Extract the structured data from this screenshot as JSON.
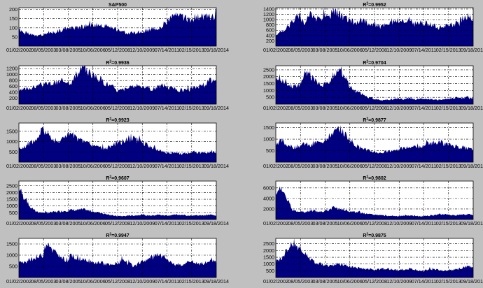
{
  "chart_data": [
    {
      "type": "area",
      "title": "S&P500",
      "r2": "",
      "yticks": [
        50,
        100,
        150,
        200
      ],
      "ylim": [
        0,
        210
      ],
      "xticks": [
        "01/02/2002",
        "08/05/2003",
        "03/08/2005",
        "10/06/2006",
        "05/12/2008",
        "12/10/2009",
        "07/14/2011",
        "02/15/2013",
        "09/18/2014"
      ],
      "color": "#000080",
      "series": {
        "x_start": "01/02/2002",
        "x_end": "12/31/2014",
        "y": [
          88,
          72,
          62,
          55,
          60,
          66,
          75,
          85,
          95,
          98,
          100,
          108,
          115,
          118,
          112,
          110,
          104,
          92,
          80,
          70,
          72,
          78,
          85,
          92,
          98,
          118,
          150,
          165,
          158,
          150,
          145,
          155,
          165,
          160,
          155
        ]
      }
    },
    {
      "type": "area",
      "title": "",
      "r2": "=0.9952",
      "yticks": [
        200,
        400,
        600,
        800,
        1000,
        1200,
        1400
      ],
      "ylim": [
        0,
        1450
      ],
      "xticks": [
        "01/02/2002",
        "08/05/2003",
        "03/08/2005",
        "10/06/2006",
        "05/12/2008",
        "12/10/2009",
        "07/14/2011",
        "02/15/2013",
        "09/18/2014"
      ],
      "color": "#000080",
      "series": {
        "x_start": "01/02/2002",
        "x_end": "12/31/2014",
        "y": [
          450,
          520,
          700,
          1000,
          1150,
          900,
          1200,
          1050,
          1100,
          1100,
          1300,
          1200,
          1050,
          950,
          900,
          1000,
          850,
          800,
          750,
          800,
          900,
          950,
          900,
          1000,
          800,
          900,
          850,
          800,
          700,
          750,
          800,
          850,
          1000,
          1150,
          1100
        ]
      }
    },
    {
      "type": "area",
      "title": "",
      "r2": "=0.9936",
      "yticks": [
        200,
        400,
        600,
        800,
        1000,
        1200
      ],
      "ylim": [
        0,
        1300
      ],
      "xticks": [
        "01/02/2002",
        "08/05/2003",
        "03/08/2005",
        "10/06/2006",
        "05/12/2008",
        "12/10/2009",
        "07/14/2011",
        "02/15/2013",
        "09/18/2014"
      ],
      "color": "#000080",
      "series": {
        "x_start": "01/02/2002",
        "x_end": "12/31/2014",
        "y": [
          450,
          500,
          550,
          600,
          650,
          700,
          700,
          750,
          800,
          750,
          1000,
          1250,
          1100,
          950,
          850,
          700,
          600,
          450,
          500,
          550,
          600,
          650,
          550,
          500,
          600,
          650,
          550,
          500,
          450,
          500,
          550,
          600,
          650,
          800,
          750
        ]
      }
    },
    {
      "type": "area",
      "title": "",
      "r2": "=0.9704",
      "yticks": [
        500,
        1000,
        1500,
        2000,
        2500
      ],
      "ylim": [
        0,
        2800
      ],
      "xticks": [
        "01/02/2002",
        "08/05/2003",
        "03/08/2005",
        "10/06/2006",
        "05/12/2008",
        "12/10/2009",
        "07/14/2011",
        "02/15/2013",
        "09/18/2014"
      ],
      "color": "#000080",
      "series": {
        "x_start": "01/02/2002",
        "x_end": "12/31/2014",
        "y": [
          1900,
          1750,
          1500,
          1300,
          1400,
          2200,
          2000,
          1650,
          1400,
          1550,
          2100,
          2600,
          1800,
          1200,
          900,
          700,
          500,
          350,
          300,
          300,
          350,
          400,
          350,
          450,
          350,
          400,
          350,
          350,
          300,
          350,
          400,
          450,
          400,
          500,
          450
        ]
      }
    },
    {
      "type": "area",
      "title": "",
      "r2": "=0.9923",
      "yticks": [
        500,
        1000,
        1500
      ],
      "ylim": [
        0,
        1900
      ],
      "xticks": [
        "01/02/2002",
        "08/05/2003",
        "03/08/2005",
        "10/06/2006",
        "05/12/2008",
        "12/10/2009",
        "07/14/2011",
        "02/15/2013",
        "09/18/2014"
      ],
      "color": "#000080",
      "series": {
        "x_start": "01/02/2002",
        "x_end": "12/31/2014",
        "y": [
          650,
          750,
          900,
          1100,
          1600,
          1300,
          1100,
          1000,
          1300,
          1350,
          1150,
          1000,
          900,
          800,
          700,
          650,
          800,
          950,
          1000,
          1150,
          1200,
          1000,
          850,
          700,
          600,
          500,
          450,
          450,
          400,
          450,
          500,
          450,
          450,
          500,
          450
        ]
      }
    },
    {
      "type": "area",
      "title": "",
      "r2": "=0.9877",
      "yticks": [
        500,
        1000,
        1500
      ],
      "ylim": [
        0,
        1700
      ],
      "xticks": [
        "01/02/2002",
        "08/05/2003",
        "03/08/2005",
        "10/06/2006",
        "05/12/2008",
        "12/10/2009",
        "07/14/2011",
        "02/15/2013",
        "09/18/2014"
      ],
      "color": "#000080",
      "series": {
        "x_start": "01/02/2002",
        "x_end": "12/31/2014",
        "y": [
          850,
          900,
          750,
          650,
          700,
          800,
          700,
          850,
          900,
          1100,
          1300,
          1450,
          1200,
          900,
          700,
          600,
          500,
          450,
          400,
          450,
          500,
          550,
          600,
          650,
          700,
          650,
          800,
          850,
          900,
          800,
          750,
          700,
          650,
          600,
          550
        ]
      }
    },
    {
      "type": "area",
      "title": "",
      "r2": "=0.9607",
      "yticks": [
        500,
        1000,
        1500,
        2000,
        2500
      ],
      "ylim": [
        0,
        2850
      ],
      "xticks": [
        "01/02/2002",
        "08/05/2003",
        "03/08/2005",
        "10/06/2006",
        "05/12/2008",
        "12/10/2009",
        "07/14/2011",
        "02/15/2013",
        "09/18/2014"
      ],
      "color": "#000080",
      "series": {
        "x_start": "01/02/2002",
        "x_end": "12/31/2014",
        "y": [
          2300,
          1600,
          900,
          600,
          500,
          500,
          550,
          600,
          650,
          700,
          700,
          750,
          650,
          600,
          500,
          400,
          300,
          250,
          250,
          300,
          300,
          350,
          300,
          300,
          350,
          300,
          300,
          350,
          350,
          300,
          300,
          300,
          300,
          350,
          300
        ]
      }
    },
    {
      "type": "area",
      "title": "",
      "r2": "=0.9802",
      "yticks": [
        2000,
        4000,
        6000
      ],
      "ylim": [
        0,
        7300
      ],
      "xticks": [
        "01/02/2002",
        "08/05/2003",
        "03/08/2005",
        "10/06/2006",
        "05/12/2008",
        "12/10/2009",
        "07/14/2011",
        "02/15/2013",
        "09/18/2014"
      ],
      "color": "#000080",
      "series": {
        "x_start": "01/02/2002",
        "x_end": "12/31/2014",
        "y": [
          4800,
          6200,
          3500,
          1700,
          1500,
          1500,
          1600,
          1500,
          1500,
          1700,
          2400,
          2000,
          1700,
          1500,
          1400,
          1200,
          1000,
          900,
          800,
          700,
          700,
          600,
          700,
          800,
          700,
          600,
          700,
          800,
          900,
          1000,
          900,
          800,
          900,
          1000,
          900
        ]
      }
    },
    {
      "type": "area",
      "title": "",
      "r2": "=0.9947",
      "yticks": [
        500,
        1000,
        1500
      ],
      "ylim": [
        0,
        1750
      ],
      "xticks": [
        "01/02/2002",
        "08/05/2003",
        "03/08/2005",
        "10/06/2006",
        "05/12/2008",
        "12/10/2009",
        "07/14/2011",
        "02/15/2013",
        "09/18/2014"
      ],
      "color": "#000080",
      "series": {
        "x_start": "01/02/2002",
        "x_end": "12/31/2014",
        "y": [
          700,
          650,
          800,
          900,
          1000,
          1600,
          1200,
          900,
          800,
          950,
          900,
          800,
          700,
          650,
          700,
          600,
          550,
          650,
          750,
          600,
          500,
          700,
          800,
          900,
          1000,
          900,
          700,
          600,
          550,
          650,
          700,
          600,
          650,
          750,
          700
        ]
      }
    },
    {
      "type": "area",
      "title": "",
      "r2": "=0.9875",
      "yticks": [
        500,
        1000,
        1500,
        2000,
        2500
      ],
      "ylim": [
        0,
        2900
      ],
      "xticks": [
        "01/02/2002",
        "08/05/2003",
        "03/08/2005",
        "10/06/2006",
        "05/12/2008",
        "12/10/2009",
        "07/14/2011",
        "02/15/2013",
        "09/18/2014"
      ],
      "color": "#000080",
      "series": {
        "x_start": "01/02/2002",
        "x_end": "12/31/2014",
        "y": [
          1200,
          1500,
          2000,
          2400,
          2200,
          1900,
          1400,
          1100,
          1000,
          900,
          950,
          1000,
          900,
          800,
          700,
          650,
          600,
          550,
          600,
          650,
          600,
          550,
          600,
          650,
          550,
          500,
          550,
          600,
          550,
          500,
          550,
          600,
          700,
          800,
          750
        ]
      }
    }
  ]
}
